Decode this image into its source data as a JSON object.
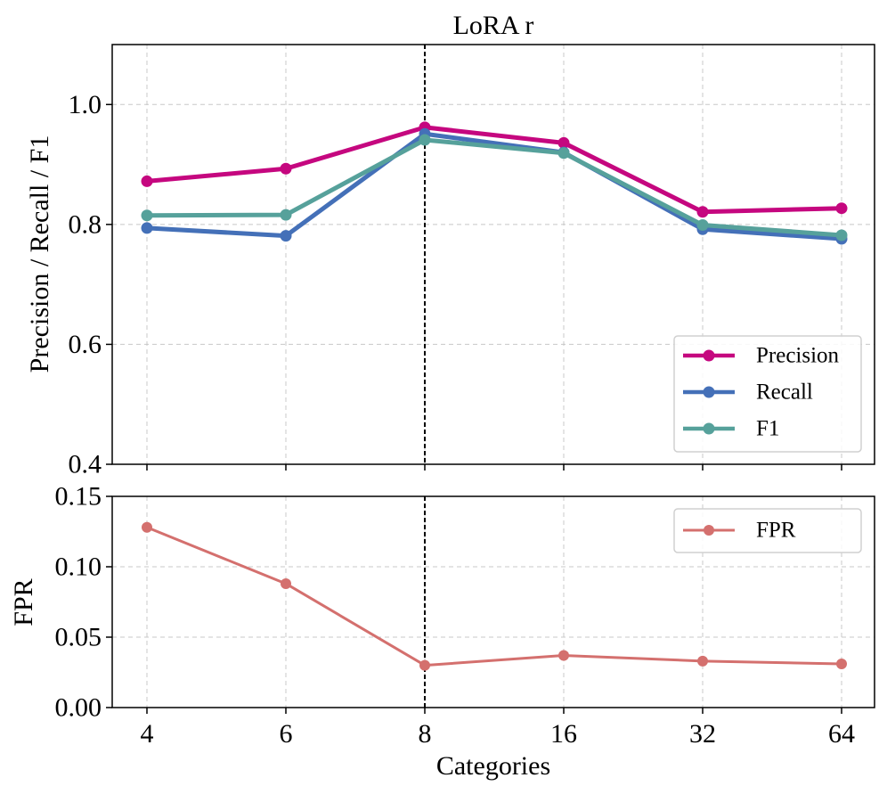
{
  "chart_data": [
    {
      "type": "line",
      "title": "LoRA r",
      "xlabel": "",
      "ylabel": "Precision / Recall / F1",
      "categories": [
        "4",
        "6",
        "8",
        "16",
        "32",
        "64"
      ],
      "ylim": [
        0.4,
        1.1
      ],
      "yticks": [
        "0.4",
        "0.6",
        "0.8",
        "1.0"
      ],
      "yticks_values": [
        0.4,
        0.6,
        0.8,
        1.0
      ],
      "grid": true,
      "legend_position": "lower-right",
      "highlight_category": "8",
      "series": [
        {
          "name": "Precision",
          "values": [
            0.872,
            0.893,
            0.962,
            0.936,
            0.821,
            0.827
          ],
          "color": "#c5077f"
        },
        {
          "name": "Recall",
          "values": [
            0.794,
            0.781,
            0.951,
            0.92,
            0.792,
            0.776
          ],
          "color": "#4470b8"
        },
        {
          "name": "F1",
          "values": [
            0.815,
            0.816,
            0.941,
            0.919,
            0.799,
            0.782
          ],
          "color": "#56a19b"
        }
      ]
    },
    {
      "type": "line",
      "title": "",
      "xlabel": "Categories",
      "ylabel": "FPR",
      "categories": [
        "4",
        "6",
        "8",
        "16",
        "32",
        "64"
      ],
      "ylim": [
        0.0,
        0.15
      ],
      "yticks": [
        "0.00",
        "0.05",
        "0.10",
        "0.15"
      ],
      "yticks_values": [
        0.0,
        0.05,
        0.1,
        0.15
      ],
      "grid": true,
      "legend_position": "upper-right",
      "highlight_category": "8",
      "series": [
        {
          "name": "FPR",
          "values": [
            0.128,
            0.088,
            0.03,
            0.037,
            0.033,
            0.031
          ],
          "color": "#d4706e"
        }
      ]
    }
  ]
}
